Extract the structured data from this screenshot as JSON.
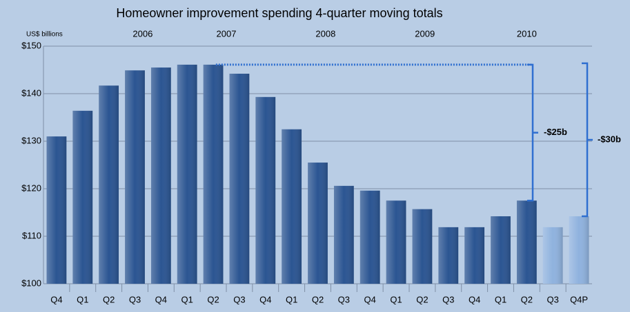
{
  "chart_data": {
    "type": "bar",
    "title": "Homeowner improvement spending 4-quarter moving totals",
    "y_label": "US$ billions",
    "years": [
      "2006",
      "2007",
      "2008",
      "2009",
      "2010"
    ],
    "categories": [
      "Q4",
      "Q1",
      "Q2",
      "Q3",
      "Q4",
      "Q1",
      "Q2",
      "Q3",
      "Q4",
      "Q1",
      "Q2",
      "Q3",
      "Q4",
      "Q1",
      "Q2",
      "Q3",
      "Q4",
      "Q1",
      "Q2",
      "Q3",
      "Q4P"
    ],
    "values": [
      131,
      136.4,
      141.7,
      144.9,
      145.5,
      146.1,
      146.1,
      144.2,
      139.3,
      132.5,
      125.5,
      120.6,
      119.6,
      117.5,
      115.7,
      111.9,
      111.9,
      114.2,
      117.5,
      111.9,
      114.2
    ],
    "colors": [
      "#2b5592",
      "#2b5592",
      "#2b5592",
      "#2b5592",
      "#2b5592",
      "#2b5592",
      "#2b5592",
      "#2b5592",
      "#2b5592",
      "#2b5592",
      "#2b5592",
      "#2b5592",
      "#2b5592",
      "#2b5592",
      "#2b5592",
      "#2b5592",
      "#2b5592",
      "#2b5592",
      "#2b5592",
      "#8fb2de",
      "#8fb2de"
    ],
    "ylim": [
      100,
      150
    ],
    "yticks": [
      {
        "value": 100,
        "label": "$100"
      },
      {
        "value": 110,
        "label": "$110"
      },
      {
        "value": 120,
        "label": "$120"
      },
      {
        "value": 130,
        "label": "$130"
      },
      {
        "value": 140,
        "label": "$140"
      },
      {
        "value": 150,
        "label": "$150"
      }
    ],
    "grid": true,
    "annotations": [
      "-$25b",
      "-$30b"
    ]
  }
}
